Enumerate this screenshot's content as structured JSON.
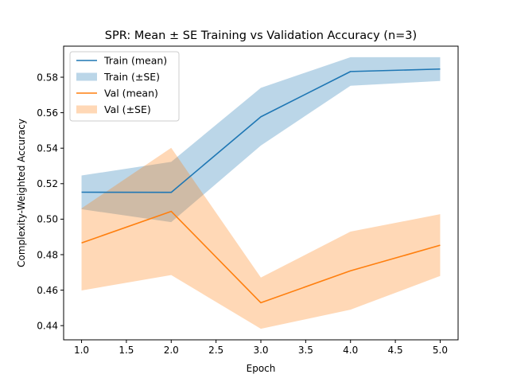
{
  "chart_data": {
    "type": "line",
    "title": "SPR: Mean ± SE Training vs Validation Accuracy (n=3)",
    "xlabel": "Epoch",
    "ylabel": "Complexity-Weighted Accuracy",
    "xlim": [
      0.8,
      5.2
    ],
    "ylim": [
      0.432,
      0.5975
    ],
    "xticks": [
      1.0,
      1.5,
      2.0,
      2.5,
      3.0,
      3.5,
      4.0,
      4.5,
      5.0
    ],
    "xtick_labels": [
      "1.0",
      "1.5",
      "2.0",
      "2.5",
      "3.0",
      "3.5",
      "4.0",
      "4.5",
      "5.0"
    ],
    "yticks": [
      0.44,
      0.46,
      0.48,
      0.5,
      0.52,
      0.54,
      0.56,
      0.58
    ],
    "ytick_labels": [
      "0.44",
      "0.46",
      "0.48",
      "0.50",
      "0.52",
      "0.54",
      "0.56",
      "0.58"
    ],
    "grid": false,
    "legend_position": "top-left",
    "x": [
      1,
      2,
      3,
      4,
      5
    ],
    "series": [
      {
        "name": "Train (mean)",
        "band_name": "Train (±SE)",
        "color": "#1f77b4",
        "band_color": "#1f77b4",
        "values": [
          0.5152,
          0.5151,
          0.5577,
          0.5832,
          0.5846
        ],
        "lower": [
          0.5056,
          0.4983,
          0.5415,
          0.5752,
          0.5779
        ],
        "upper": [
          0.5246,
          0.5323,
          0.574,
          0.5913,
          0.5913
        ]
      },
      {
        "name": "Val (mean)",
        "band_name": "Val (±SE)",
        "color": "#ff7f0e",
        "band_color": "#ff7f0e",
        "values": [
          0.4866,
          0.5044,
          0.4529,
          0.4709,
          0.4853
        ],
        "lower": [
          0.4598,
          0.4685,
          0.4382,
          0.449,
          0.468
        ],
        "upper": [
          0.5061,
          0.5402,
          0.4671,
          0.493,
          0.5028
        ]
      }
    ]
  }
}
